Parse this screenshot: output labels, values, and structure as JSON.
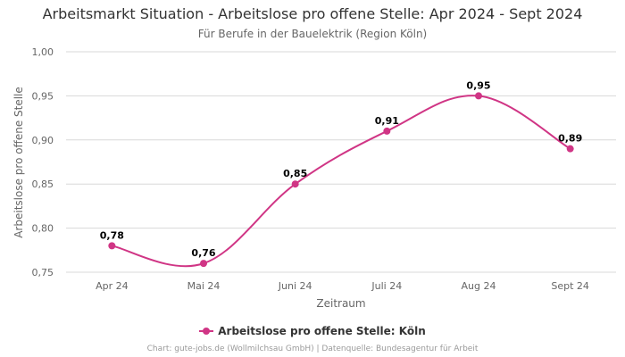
{
  "chart_data": {
    "type": "line",
    "title": "Arbeitsmarkt Situation - Arbeitslose pro offene Stelle: Apr 2024 - Sept 2024",
    "subtitle": "Für Berufe in der Bauelektrik (Region Köln)",
    "xlabel": "Zeitraum",
    "ylabel": "Arbeitslose pro offene Stelle",
    "categories": [
      "Apr 24",
      "Mai 24",
      "Juni 24",
      "Juli 24",
      "Aug 24",
      "Sept 24"
    ],
    "series": [
      {
        "name": "Arbeitslose pro offene Stelle: Köln",
        "values": [
          0.78,
          0.76,
          0.85,
          0.91,
          0.95,
          0.89
        ],
        "labels": [
          "0,78",
          "0,76",
          "0,85",
          "0,91",
          "0,95",
          "0,89"
        ],
        "color": "#d03585"
      }
    ],
    "ylim": [
      0.75,
      1.0
    ],
    "yticks": [
      0.75,
      0.8,
      0.85,
      0.9,
      0.95,
      1.0
    ],
    "ytick_labels": [
      "0,75",
      "0,80",
      "0,85",
      "0,90",
      "0,95",
      "1,00"
    ],
    "grid": true,
    "legend_position": "bottom-center",
    "credits": "Chart: gute-jobs.de (Wollmilchsau GmbH) | Datenquelle: Bundesagentur für Arbeit"
  }
}
